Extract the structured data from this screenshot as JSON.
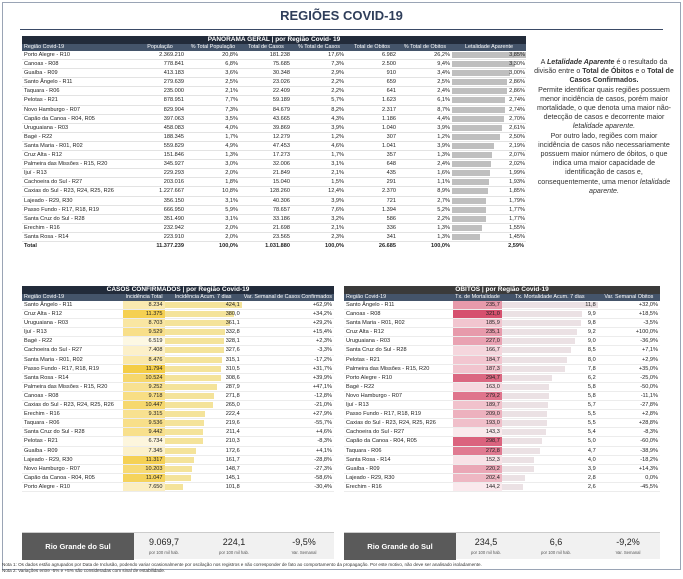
{
  "title": "REGIÕES COVID-19",
  "panorama": {
    "band": "PANORAMA GERAL | por Região Covid- 19",
    "headers": [
      "Região Covid-19",
      "População",
      "% Total População",
      "Total de Casos",
      "% Total de Casos",
      "Total de Óbitos",
      "% Total de Óbitos",
      "Letalidade Aparente"
    ],
    "rows": [
      [
        "Porto Alegre - R10",
        "2.369.210",
        "20,8%",
        "181.238",
        "17,6%",
        "6.982",
        "26,2%",
        "3,85%"
      ],
      [
        "Canoas - R08",
        "778.841",
        "6,8%",
        "75.685",
        "7,3%",
        "2.500",
        "9,4%",
        "3,30%"
      ],
      [
        "Guaíba - R09",
        "413.183",
        "3,6%",
        "30.348",
        "2,9%",
        "910",
        "3,4%",
        "3,00%"
      ],
      [
        "Santo Ângelo - R11",
        "279.639",
        "2,5%",
        "23.026",
        "2,2%",
        "659",
        "2,5%",
        "2,86%"
      ],
      [
        "Taquara - R06",
        "235.000",
        "2,1%",
        "22.409",
        "2,2%",
        "641",
        "2,4%",
        "2,86%"
      ],
      [
        "Pelotas - R21",
        "878.951",
        "7,7%",
        "59.189",
        "5,7%",
        "1.623",
        "6,1%",
        "2,74%"
      ],
      [
        "Novo Hamburgo - R07",
        "829.904",
        "7,3%",
        "84.679",
        "8,2%",
        "2.317",
        "8,7%",
        "2,74%"
      ],
      [
        "Capão da Canoa - R04, R05",
        "397.063",
        "3,5%",
        "43.665",
        "4,3%",
        "1.186",
        "4,4%",
        "2,70%"
      ],
      [
        "Uruguaiana - R03",
        "458.083",
        "4,0%",
        "39.869",
        "3,9%",
        "1.040",
        "3,9%",
        "2,61%"
      ],
      [
        "Bagé - R22",
        "188.345",
        "1,7%",
        "12.279",
        "1,2%",
        "307",
        "1,2%",
        "2,50%"
      ],
      [
        "Santa Maria - R01, R02",
        "559.829",
        "4,9%",
        "47.453",
        "4,6%",
        "1.041",
        "3,9%",
        "2,19%"
      ],
      [
        "Cruz Alta - R12",
        "151.846",
        "1,3%",
        "17.273",
        "1,7%",
        "357",
        "1,3%",
        "2,07%"
      ],
      [
        "Palmeira das Missões - R15, R20",
        "345.927",
        "3,0%",
        "32.006",
        "3,1%",
        "648",
        "2,4%",
        "2,02%"
      ],
      [
        "Ijuí - R13",
        "229.293",
        "2,0%",
        "21.849",
        "2,1%",
        "435",
        "1,6%",
        "1,99%"
      ],
      [
        "Cachoeira do Sul - R27",
        "203.016",
        "1,8%",
        "15.040",
        "1,5%",
        "291",
        "1,1%",
        "1,93%"
      ],
      [
        "Caxias do Sul - R23, R24, R25, R26",
        "1.227.667",
        "10,8%",
        "128.260",
        "12,4%",
        "2.370",
        "8,9%",
        "1,85%"
      ],
      [
        "Lajeado - R29, R30",
        "356.150",
        "3,1%",
        "40.306",
        "3,9%",
        "721",
        "2,7%",
        "1,79%"
      ],
      [
        "Passo Fundo - R17, R18, R19",
        "666.950",
        "5,9%",
        "78.657",
        "7,6%",
        "1.394",
        "5,2%",
        "1,77%"
      ],
      [
        "Santa Cruz do Sul - R28",
        "351.490",
        "3,1%",
        "33.186",
        "3,2%",
        "586",
        "2,2%",
        "1,77%"
      ],
      [
        "Erechim - R16",
        "232.942",
        "2,0%",
        "21.698",
        "2,1%",
        "336",
        "1,3%",
        "1,55%"
      ],
      [
        "Santa Rosa - R14",
        "223.910",
        "2,0%",
        "23.565",
        "2,3%",
        "341",
        "1,3%",
        "1,45%"
      ]
    ],
    "total": [
      "Total",
      "11.377.239",
      "100,0%",
      "1.031.880",
      "100,0%",
      "26.685",
      "100,0%",
      "2,59%"
    ],
    "letalidade_values": [
      3.85,
      3.3,
      3.0,
      2.86,
      2.86,
      2.74,
      2.74,
      2.7,
      2.61,
      2.5,
      2.19,
      2.07,
      2.02,
      1.99,
      1.93,
      1.85,
      1.79,
      1.77,
      1.77,
      1.55,
      1.45
    ]
  },
  "note": {
    "p1a": "A ",
    "p1b": "Letalidade Aparente",
    "p1c": " é o resultado da divisão entre o ",
    "p1d": "Total de Óbitos",
    "p1e": " e o ",
    "p1f": "Total de Casos Confirmados.",
    "p2": "Permite identificar quais regiões possuem menor incidência de casos, porém maior mortalidade, o que denota uma maior não-detecção de casos e decorrente maior ",
    "p2b": "letalidade aparente.",
    "p3": "Por outro lado, regiões com maior incidência de casos não necessariamente possuem maior número de óbitos, o que indica uma maior capacidade de identificação de casos e, consequentemente, uma menor ",
    "p3b": "letalidade aparente."
  },
  "casos": {
    "band": "CASOS CONFIRMADOS | por Região Covid-19",
    "headers": [
      "Região Covid-19",
      "Incidência Total",
      "Incidência Acum. 7 dias",
      "Var. Semanal de Casos Confirmados"
    ],
    "rows": [
      [
        "Santo Ângelo - R11",
        "8.234",
        "424,1",
        "+62,9%"
      ],
      [
        "Cruz Alta - R12",
        "11.375",
        "380,0",
        "+34,2%"
      ],
      [
        "Uruguaiana - R03",
        "8.703",
        "361,1",
        "+29,2%"
      ],
      [
        "Ijuí - R13",
        "9.529",
        "332,8",
        "+15,4%"
      ],
      [
        "Bagé - R22",
        "6.519",
        "328,1",
        "+2,3%"
      ],
      [
        "Cachoeira do Sul - R27",
        "7.408",
        "327,6",
        "-3,3%"
      ],
      [
        "Santa Maria - R01, R02",
        "8.476",
        "315,1",
        "-17,2%"
      ],
      [
        "Passo Fundo - R17, R18, R19",
        "11.794",
        "310,5",
        "+31,7%"
      ],
      [
        "Santa Rosa - R14",
        "10.524",
        "308,6",
        "+39,9%"
      ],
      [
        "Palmeira das Missões - R15, R20",
        "9.252",
        "287,9",
        "+47,1%"
      ],
      [
        "Canoas - R08",
        "9.718",
        "271,8",
        "-12,8%"
      ],
      [
        "Caxias do Sul - R23, R24, R25, R26",
        "10.447",
        "265,0",
        "-21,0%"
      ],
      [
        "Erechim - R16",
        "9.315",
        "222,4",
        "+27,9%"
      ],
      [
        "Taquara - R06",
        "9.536",
        "219,6",
        "-55,7%"
      ],
      [
        "Santa Cruz do Sul - R28",
        "9.442",
        "211,4",
        "+4,6%"
      ],
      [
        "Pelotas - R21",
        "6.734",
        "210,3",
        "-8,3%"
      ],
      [
        "Guaíba - R09",
        "7.345",
        "172,6",
        "+4,1%"
      ],
      [
        "Lajeado - R29, R30",
        "11.317",
        "161,7",
        "-28,8%"
      ],
      [
        "Novo Hamburgo - R07",
        "10.203",
        "148,7",
        "-27,3%"
      ],
      [
        "Capão da Canoa - R04, R05",
        "11.047",
        "145,1",
        "-58,6%"
      ],
      [
        "Porto Alegre - R10",
        "7.650",
        "101,8",
        "-30,4%"
      ]
    ],
    "inc7_values": [
      424.1,
      380.0,
      361.1,
      332.8,
      328.1,
      327.6,
      315.1,
      310.5,
      308.6,
      287.9,
      271.8,
      265.0,
      222.4,
      219.6,
      211.4,
      210.3,
      172.6,
      161.7,
      148.7,
      145.1,
      101.8
    ],
    "inc_total_values": [
      8234,
      11375,
      8703,
      9529,
      6519,
      7408,
      8476,
      11794,
      10524,
      9252,
      9718,
      10447,
      9315,
      9536,
      9442,
      6734,
      7345,
      11317,
      10203,
      11047,
      7650
    ],
    "summary": {
      "label": "Rio Grande do Sul",
      "v1": "9.069,7",
      "s1": "por 100 mil hab.",
      "v2": "224,1",
      "s2": "por 100 mil hab.",
      "v3": "-9,5%",
      "s3": "Var. Semanal"
    }
  },
  "obitos": {
    "band": "ÓBITOS | por Região Covid-19",
    "headers": [
      "Região Covid-19",
      "Tx. de Mortalidade",
      "Tx. Mortalidade Acum. 7 dias",
      "Var. Semanal Óbitos"
    ],
    "rows": [
      [
        "Santo Ângelo - R11",
        "235,7",
        "11,8",
        "+32,0%"
      ],
      [
        "Canoas - R08",
        "321,0",
        "9,9",
        "+18,5%"
      ],
      [
        "Santa Maria - R01, R02",
        "185,9",
        "9,8",
        "-3,5%"
      ],
      [
        "Cruz Alta - R12",
        "235,1",
        "9,2",
        "+100,0%"
      ],
      [
        "Uruguaiana - R03",
        "227,0",
        "9,0",
        "-36,9%"
      ],
      [
        "Santa Cruz do Sul - R28",
        "166,7",
        "8,5",
        "+7,1%"
      ],
      [
        "Pelotas - R21",
        "184,7",
        "8,0",
        "+2,9%"
      ],
      [
        "Palmeira das Missões - R15, R20",
        "187,3",
        "7,8",
        "+35,0%"
      ],
      [
        "Porto Alegre - R10",
        "294,7",
        "6,2",
        "-25,0%"
      ],
      [
        "Bagé - R22",
        "163,0",
        "5,8",
        "-50,0%"
      ],
      [
        "Novo Hamburgo - R07",
        "279,2",
        "5,8",
        "-11,1%"
      ],
      [
        "Ijuí - R13",
        "189,7",
        "5,7",
        "-27,8%"
      ],
      [
        "Passo Fundo - R17, R18, R19",
        "209,0",
        "5,5",
        "+2,8%"
      ],
      [
        "Caxias do Sul - R23, R24, R25, R26",
        "193,0",
        "5,5",
        "+28,8%"
      ],
      [
        "Cachoeira do Sul - R27",
        "143,3",
        "5,4",
        "-8,3%"
      ],
      [
        "Capão da Canoa - R04, R05",
        "298,7",
        "5,0",
        "-60,0%"
      ],
      [
        "Taquara - R06",
        "272,8",
        "4,7",
        "-38,9%"
      ],
      [
        "Santa Rosa - R14",
        "152,3",
        "4,0",
        "-18,2%"
      ],
      [
        "Guaíba - R09",
        "220,2",
        "3,9",
        "+14,3%"
      ],
      [
        "Lajeado - R29, R30",
        "202,4",
        "2,8",
        "0,0%"
      ],
      [
        "Erechim - R16",
        "144,2",
        "2,6",
        "-45,5%"
      ]
    ],
    "mort_values": [
      235.7,
      321.0,
      185.9,
      235.1,
      227.0,
      166.7,
      184.7,
      187.3,
      294.7,
      163.0,
      279.2,
      189.7,
      209.0,
      193.0,
      143.3,
      298.7,
      272.8,
      152.3,
      220.2,
      202.4,
      144.2
    ],
    "mort7_values": [
      11.8,
      9.9,
      9.8,
      9.2,
      9.0,
      8.5,
      8.0,
      7.8,
      6.2,
      5.8,
      5.8,
      5.7,
      5.5,
      5.5,
      5.4,
      5.0,
      4.7,
      4.0,
      3.9,
      2.8,
      2.6
    ],
    "summary": {
      "label": "Rio Grande do Sul",
      "v1": "234,5",
      "s1": "por 100 mil hab.",
      "v2": "6,6",
      "s2": "por 100 mil hab.",
      "v3": "-9,2%",
      "s3": "Var. Semanal"
    }
  },
  "footnotes": [
    "Nota 1: Os dados estão agrupados por Data de Inclusão, podendo variar ocasionalmente por oscilação nos registros e não corresponder de fato ao comportamento da propagação. Por este motivo, não deve ser analisado isoladamente.",
    "Nota 2: Variações entre -5% e +5% são consideradas com sinal de estabilidade."
  ]
}
